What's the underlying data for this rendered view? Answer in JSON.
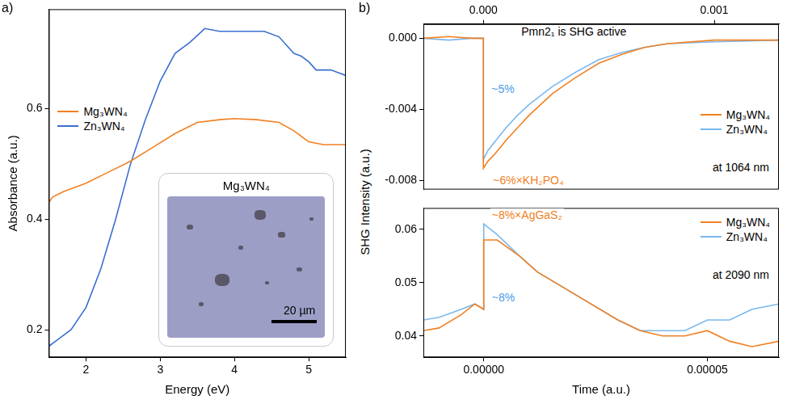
{
  "chart_data": [
    {
      "type": "line",
      "panel": "a)",
      "x_label": "Energy (eV)",
      "y_label": "Absorbance (a.u.)",
      "xlim": [
        1.5,
        5.5
      ],
      "xticks": [
        2,
        3,
        4,
        5
      ],
      "ylim": [
        0.15,
        0.78
      ],
      "yticks": [
        0.2,
        0.4,
        0.6
      ],
      "grid": false,
      "legend": "left",
      "series": [
        {
          "name": "Mg₃WN₄",
          "color": "#f28022",
          "x": [
            1.5,
            1.55,
            1.7,
            2.0,
            2.3,
            2.6,
            2.9,
            3.2,
            3.5,
            3.8,
            4.0,
            4.3,
            4.6,
            4.8,
            5.0,
            5.2,
            5.5
          ],
          "values": [
            0.43,
            0.44,
            0.45,
            0.465,
            0.485,
            0.505,
            0.53,
            0.555,
            0.575,
            0.58,
            0.582,
            0.58,
            0.575,
            0.56,
            0.54,
            0.535,
            0.535
          ]
        },
        {
          "name": "Zn₃WN₄",
          "color": "#3a6fd0",
          "x": [
            1.5,
            1.6,
            1.8,
            2.0,
            2.2,
            2.4,
            2.6,
            2.8,
            3.0,
            3.2,
            3.4,
            3.6,
            3.8,
            4.0,
            4.2,
            4.4,
            4.6,
            4.8,
            4.9,
            5.0,
            5.1,
            5.2,
            5.3,
            5.4,
            5.5
          ],
          "values": [
            0.17,
            0.18,
            0.2,
            0.24,
            0.31,
            0.4,
            0.5,
            0.58,
            0.65,
            0.7,
            0.72,
            0.745,
            0.74,
            0.74,
            0.74,
            0.74,
            0.73,
            0.7,
            0.695,
            0.685,
            0.67,
            0.67,
            0.67,
            0.665,
            0.66
          ]
        }
      ],
      "inset": {
        "title": "Mg₃WN₄",
        "scale_bar": "20 µm"
      }
    },
    {
      "type": "line",
      "panel": "b)",
      "y_label": "SHG Intensity (a.u.)",
      "xlim": [
        -0.00026,
        0.00128
      ],
      "xticks": [
        {
          "value": 0,
          "label": "0.000"
        },
        {
          "value": 0.001,
          "label": "0.001"
        }
      ],
      "ylim": [
        -0.0085,
        0.0008
      ],
      "yticks": [
        {
          "value": 0,
          "label": "0.000"
        },
        -0.004,
        -0.008
      ],
      "grid": false,
      "legend": "right",
      "annotations": [
        {
          "text": "Pmn2₁ is SHG active",
          "color": "#000000"
        },
        {
          "text": "~5%",
          "color": "#4a9be6"
        },
        {
          "text": "~6%×KH₂PO₄",
          "color": "#f28022"
        },
        {
          "text": "at 1064 nm",
          "color": "#000000"
        }
      ],
      "series": [
        {
          "name": "Mg₃WN₄",
          "color": "#f28022",
          "x": [
            -0.00026,
            -0.00015,
            -5e-05,
            0,
            0,
            2e-05,
            5e-05,
            0.0001,
            0.00015,
            0.0002,
            0.0003,
            0.0004,
            0.0005,
            0.0006,
            0.0007,
            0.0008,
            0.001,
            0.00128
          ],
          "values": [
            0,
            0.0001,
            0,
            0,
            -0.0073,
            -0.0069,
            -0.0065,
            -0.0057,
            -0.005,
            -0.0043,
            -0.0031,
            -0.0022,
            -0.0014,
            -0.0009,
            -0.0005,
            -0.0003,
            -0.0001,
            -0.0001
          ]
        },
        {
          "name": "Zn₃WN₄",
          "color": "#7ab8ee",
          "x": [
            -0.00026,
            -0.00015,
            -5e-05,
            0,
            0,
            2e-05,
            5e-05,
            0.0001,
            0.00015,
            0.0002,
            0.0003,
            0.0004,
            0.0005,
            0.0006,
            0.0007,
            0.0008,
            0.001,
            0.00128
          ],
          "values": [
            0,
            -0.0001,
            0,
            0,
            -0.0068,
            -0.0063,
            -0.0058,
            -0.005,
            -0.0043,
            -0.0037,
            -0.0027,
            -0.0019,
            -0.0012,
            -0.0008,
            -0.0005,
            -0.0003,
            -0.0002,
            -0.0001
          ]
        }
      ]
    },
    {
      "type": "line",
      "x_label": "Time (a.u.)",
      "xlim": [
        -1.35e-05,
        6.6e-05
      ],
      "xticks": [
        {
          "value": 0,
          "label": "0.00000"
        },
        {
          "value": 5e-05,
          "label": "0.00005"
        }
      ],
      "ylim": [
        0.036,
        0.064
      ],
      "yticks": [
        0.04,
        0.05,
        0.06
      ],
      "grid": false,
      "legend": "upper right",
      "annotations": [
        {
          "text": "~8%×AgGaS₂",
          "color": "#f28022"
        },
        {
          "text": "~8%",
          "color": "#4a9be6"
        },
        {
          "text": "at 2090 nm",
          "color": "#000000"
        }
      ],
      "series": [
        {
          "name": "Mg₃WN₄",
          "color": "#f28022",
          "x": [
            -1.35e-05,
            -1e-05,
            -5e-06,
            -2e-06,
            0,
            0,
            3e-06,
            8e-06,
            1.2e-05,
            1.8e-05,
            2.2e-05,
            3e-05,
            3.5e-05,
            4e-05,
            4.5e-05,
            5e-05,
            5.5e-05,
            6e-05,
            6.6e-05
          ],
          "values": [
            0.041,
            0.0415,
            0.044,
            0.046,
            0.045,
            0.058,
            0.058,
            0.055,
            0.052,
            0.049,
            0.047,
            0.043,
            0.041,
            0.04,
            0.04,
            0.041,
            0.039,
            0.038,
            0.039
          ]
        },
        {
          "name": "Zn₃WN₄",
          "color": "#7ab8ee",
          "x": [
            -1.35e-05,
            -1e-05,
            -5e-06,
            -2e-06,
            0,
            0,
            3e-06,
            8e-06,
            1.2e-05,
            1.8e-05,
            2.2e-05,
            3e-05,
            3.5e-05,
            4e-05,
            4.5e-05,
            5e-05,
            5.5e-05,
            6e-05,
            6.6e-05
          ],
          "values": [
            0.043,
            0.0435,
            0.045,
            0.046,
            0.045,
            0.061,
            0.059,
            0.055,
            0.052,
            0.049,
            0.047,
            0.043,
            0.041,
            0.041,
            0.041,
            0.043,
            0.043,
            0.045,
            0.046
          ]
        }
      ]
    }
  ]
}
